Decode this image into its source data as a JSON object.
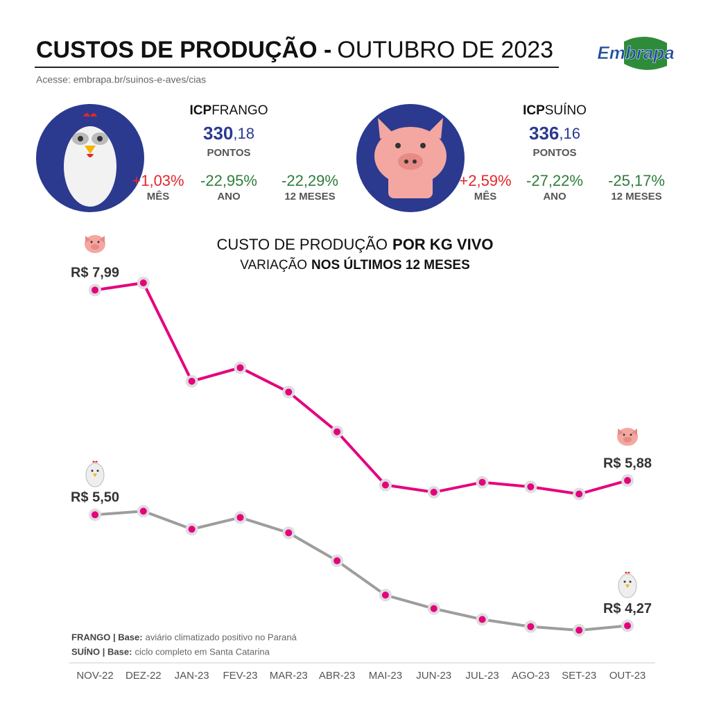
{
  "header": {
    "title_bold": "CUSTOS DE PRODUÇÃO -",
    "title_light": "OUTUBRO DE 2023",
    "subtitle": "Acesse: embrapa.br/suinos-e-aves/cias",
    "logo": "Embrapa"
  },
  "indices": [
    {
      "prefix": "ICP",
      "name": "FRANGO",
      "value_int": "330",
      "value_dec": ",18",
      "unit": "PONTOS",
      "changes": [
        {
          "value": "+1,03%",
          "label": "MÊS",
          "color": "#e4252b"
        },
        {
          "value": "-22,95%",
          "label": "ANO",
          "color": "#2e7d3a"
        },
        {
          "value": "-22,29%",
          "label": "12 MESES",
          "color": "#2e7d3a"
        }
      ]
    },
    {
      "prefix": "ICP",
      "name": "SUÍNO",
      "value_int": "336",
      "value_dec": ",16",
      "unit": "PONTOS",
      "changes": [
        {
          "value": "+2,59%",
          "label": "MÊS",
          "color": "#e4252b"
        },
        {
          "value": "-27,22%",
          "label": "ANO",
          "color": "#2e7d3a"
        },
        {
          "value": "-25,17%",
          "label": "12 MESES",
          "color": "#2e7d3a"
        }
      ]
    }
  ],
  "chart_data": {
    "type": "line",
    "title": "CUSTO DE PRODUÇÃO",
    "title_emphasis": "POR KG VIVO",
    "subtitle": "VARIAÇÃO",
    "subtitle_emphasis": "NOS ÚLTIMOS 12 MESES",
    "categories": [
      "NOV-22",
      "DEZ-22",
      "JAN-23",
      "FEV-23",
      "MAR-23",
      "ABR-23",
      "MAI-23",
      "JUN-23",
      "JUL-23",
      "AGO-23",
      "SET-23",
      "OUT-23"
    ],
    "marker_color": "#e5007e",
    "series": [
      {
        "color": "#e5007e",
        "values": [
          7.99,
          8.07,
          6.98,
          7.13,
          6.86,
          6.42,
          5.83,
          5.75,
          5.86,
          5.81,
          5.73,
          5.88
        ],
        "value_labels": [
          "R$ 7,99",
          null,
          null,
          null,
          null,
          null,
          null,
          null,
          null,
          null,
          null,
          "R$ 5,88"
        ]
      },
      {
        "color": "#9d9d9d",
        "values": [
          5.5,
          5.54,
          5.34,
          5.47,
          5.3,
          4.99,
          4.61,
          4.46,
          4.34,
          4.26,
          4.22,
          4.27
        ],
        "value_labels": [
          "R$ 5,50",
          null,
          null,
          null,
          null,
          null,
          null,
          null,
          null,
          null,
          null,
          "R$ 4,27"
        ]
      }
    ]
  },
  "footnotes": [
    {
      "label": "FRANGO | Base:",
      "text": "aviário climatizado positivo no Paraná"
    },
    {
      "label": "SUÍNO | Base:",
      "text": "ciclo completo em Santa Catarina"
    }
  ]
}
